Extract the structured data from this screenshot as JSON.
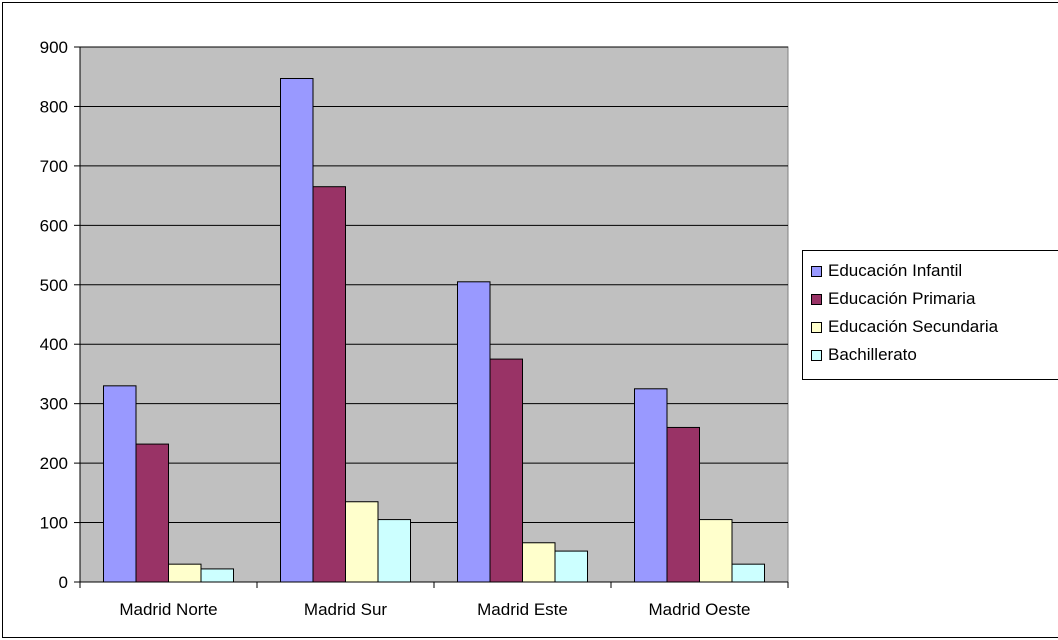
{
  "chart_data": {
    "type": "bar",
    "categories": [
      "Madrid Norte",
      "Madrid Sur",
      "Madrid Este",
      "Madrid Oeste"
    ],
    "series": [
      {
        "name": "Educación Infantil",
        "values": [
          330,
          847,
          505,
          325
        ],
        "color": "#9999FF"
      },
      {
        "name": "Educación Primaria",
        "values": [
          232,
          665,
          375,
          260
        ],
        "color": "#993366"
      },
      {
        "name": "Educación Secundaria",
        "values": [
          30,
          135,
          66,
          105
        ],
        "color": "#FFFFCC"
      },
      {
        "name": "Bachillerato",
        "values": [
          22,
          105,
          52,
          30
        ],
        "color": "#CCFFFF"
      }
    ],
    "yticks": [
      "0",
      "100",
      "200",
      "300",
      "400",
      "500",
      "600",
      "700",
      "800",
      "900"
    ],
    "ylim": [
      0,
      900
    ],
    "title": "",
    "xlabel": "",
    "ylabel": "",
    "grid": true,
    "plot_background": "#C0C0C0",
    "legend_position": "right"
  }
}
